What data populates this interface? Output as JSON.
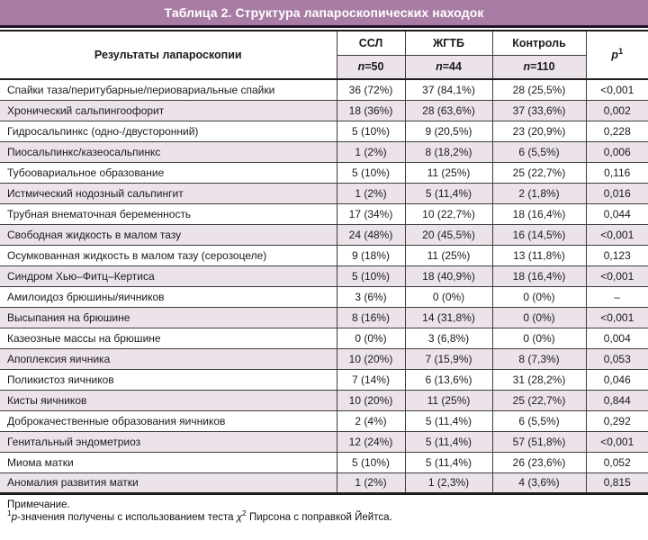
{
  "title": "Таблица 2. Структура лапароскопических находок",
  "colors": {
    "title_bar": "#a87ca4",
    "title_text": "#ffffff",
    "stripe_row": "#ece2ea",
    "border_dark": "#1c1c1c",
    "border_inner": "#3d3d3d"
  },
  "table": {
    "row_header": "Результаты лапароскопии",
    "groups": [
      {
        "label": "ССЛ",
        "n_italic": "n",
        "n_value": "=50"
      },
      {
        "label": "ЖГТБ",
        "n_italic": "n",
        "n_value": "=44"
      },
      {
        "label": "Контроль",
        "n_italic": "n",
        "n_value": "=110"
      }
    ],
    "p_label": "p",
    "p_sup": "1",
    "rows": [
      {
        "label": "Спайки таза/перитубарные/периовариальные спайки",
        "ssl": "36 (72%)",
        "zhgtb": "37 (84,1%)",
        "control": "28 (25,5%)",
        "p": "<0,001"
      },
      {
        "label": "Хронический сальпингоофорит",
        "ssl": "18 (36%)",
        "zhgtb": "28 (63,6%)",
        "control": "37 (33,6%)",
        "p": "0,002"
      },
      {
        "label": "Гидросальпинкс (одно-/двусторонний)",
        "ssl": "5 (10%)",
        "zhgtb": "9 (20,5%)",
        "control": "23 (20,9%)",
        "p": "0,228"
      },
      {
        "label": "Пиосальпинкс/казеосальпинкс",
        "ssl": "1 (2%)",
        "zhgtb": "8 (18,2%)",
        "control": "6 (5,5%)",
        "p": "0,006"
      },
      {
        "label": "Тубоовариальное образование",
        "ssl": "5 (10%)",
        "zhgtb": "11 (25%)",
        "control": "25 (22,7%)",
        "p": "0,116"
      },
      {
        "label": "Истмический нодозный сальпингит",
        "ssl": "1 (2%)",
        "zhgtb": "5 (11,4%)",
        "control": "2 (1,8%)",
        "p": "0,016"
      },
      {
        "label": "Трубная внематочная беременность",
        "ssl": "17 (34%)",
        "zhgtb": "10 (22,7%)",
        "control": "18 (16,4%)",
        "p": "0,044"
      },
      {
        "label": "Свободная жидкость в малом тазу",
        "ssl": "24 (48%)",
        "zhgtb": "20 (45,5%)",
        "control": "16 (14,5%)",
        "p": "<0,001"
      },
      {
        "label": "Осумкованная жидкость в малом тазу (серозоцеле)",
        "ssl": "9 (18%)",
        "zhgtb": "11 (25%)",
        "control": "13 (11,8%)",
        "p": "0,123"
      },
      {
        "label": "Синдром Хью–Фитц–Кертиса",
        "ssl": "5 (10%)",
        "zhgtb": "18 (40,9%)",
        "control": "18 (16,4%)",
        "p": "<0,001"
      },
      {
        "label": "Амилоидоз брюшины/яичников",
        "ssl": "3 (6%)",
        "zhgtb": "0 (0%)",
        "control": "0 (0%)",
        "p": "–"
      },
      {
        "label": "Высыпания на брюшине",
        "ssl": "8 (16%)",
        "zhgtb": "14 (31,8%)",
        "control": "0 (0%)",
        "p": "<0,001"
      },
      {
        "label": "Казеозные массы на брюшине",
        "ssl": "0 (0%)",
        "zhgtb": "3 (6,8%)",
        "control": "0 (0%)",
        "p": "0,004"
      },
      {
        "label": "Апоплексия яичника",
        "ssl": "10 (20%)",
        "zhgtb": "7 (15,9%)",
        "control": "8 (7,3%)",
        "p": "0,053"
      },
      {
        "label": "Поликистоз яичников",
        "ssl": "7 (14%)",
        "zhgtb": "6 (13,6%)",
        "control": "31 (28,2%)",
        "p": "0,046"
      },
      {
        "label": "Кисты яичников",
        "ssl": "10 (20%)",
        "zhgtb": "11 (25%)",
        "control": "25 (22,7%)",
        "p": "0,844"
      },
      {
        "label": "Доброкачественные образования яичников",
        "ssl": "2 (4%)",
        "zhgtb": "5 (11,4%)",
        "control": "6 (5,5%)",
        "p": "0,292"
      },
      {
        "label": "Генитальный эндометриоз",
        "ssl": "12 (24%)",
        "zhgtb": "5 (11,4%)",
        "control": "57 (51,8%)",
        "p": "<0,001"
      },
      {
        "label": "Миома матки",
        "ssl": "5 (10%)",
        "zhgtb": "5 (11,4%)",
        "control": "26 (23,6%)",
        "p": "0,052"
      },
      {
        "label": "Аномалия развития матки",
        "ssl": "1 (2%)",
        "zhgtb": "1 (2,3%)",
        "control": "4 (3,6%)",
        "p": "0,815"
      }
    ]
  },
  "footnote": {
    "note": "Примечание.",
    "sup1": "1",
    "p_italic": "p",
    "text_before_chi": "-значения получены с использованием теста ",
    "chi": "χ",
    "chi_sup": "2",
    "text_after_chi": " Пирсона с поправкой Йейтса."
  }
}
